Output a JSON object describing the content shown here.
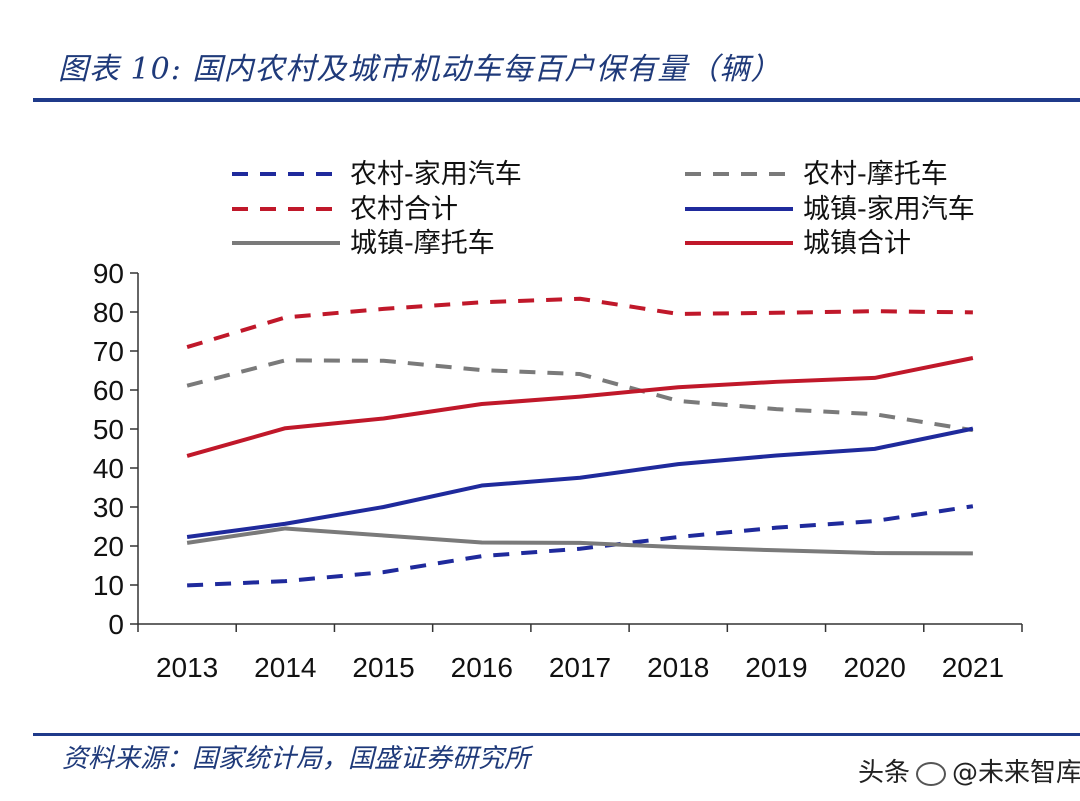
{
  "header": {
    "title": "图表 10:  国内农村及城市机动车每百户保有量（辆）"
  },
  "footer": {
    "source": "资料来源：国家统计局，国盛证券研究所"
  },
  "watermark": {
    "prefix": "头条",
    "account": "@未来智库"
  },
  "chart_data": {
    "type": "line",
    "title": "图表 10: 国内农村及城市机动车每百户保有量（辆）",
    "xlabel": "",
    "ylabel": "",
    "categories": [
      "2013",
      "2014",
      "2015",
      "2016",
      "2017",
      "2018",
      "2019",
      "2020",
      "2021"
    ],
    "ylim": [
      0,
      90
    ],
    "yticks": [
      0,
      10,
      20,
      30,
      40,
      50,
      60,
      70,
      80,
      90
    ],
    "legend_position": "top",
    "series": [
      {
        "name": "农村-家用汽车",
        "color": "#1f2a9c",
        "dash": true,
        "values": [
          9.9,
          11.0,
          13.3,
          17.4,
          19.3,
          22.3,
          24.7,
          26.4,
          30.2
        ]
      },
      {
        "name": "农村-摩托车",
        "color": "#7a7a7a",
        "dash": true,
        "values": [
          61.1,
          67.6,
          67.5,
          65.1,
          64.1,
          57.2,
          55.1,
          53.8,
          49.7
        ]
      },
      {
        "name": "农村合计",
        "color": "#c0182a",
        "dash": true,
        "values": [
          71.0,
          78.6,
          80.8,
          82.5,
          83.4,
          79.5,
          79.8,
          80.2,
          79.9
        ]
      },
      {
        "name": "城镇-家用汽车",
        "color": "#1f2a9c",
        "dash": false,
        "values": [
          22.3,
          25.7,
          30.0,
          35.5,
          37.5,
          41.0,
          43.2,
          44.9,
          50.1
        ]
      },
      {
        "name": "城镇-摩托车",
        "color": "#7a7a7a",
        "dash": false,
        "values": [
          20.8,
          24.5,
          22.7,
          20.9,
          20.8,
          19.7,
          18.9,
          18.2,
          18.1
        ]
      },
      {
        "name": "城镇合计",
        "color": "#c0182a",
        "dash": false,
        "values": [
          43.1,
          50.2,
          52.7,
          56.4,
          58.3,
          60.7,
          62.1,
          63.1,
          68.2
        ]
      }
    ]
  }
}
